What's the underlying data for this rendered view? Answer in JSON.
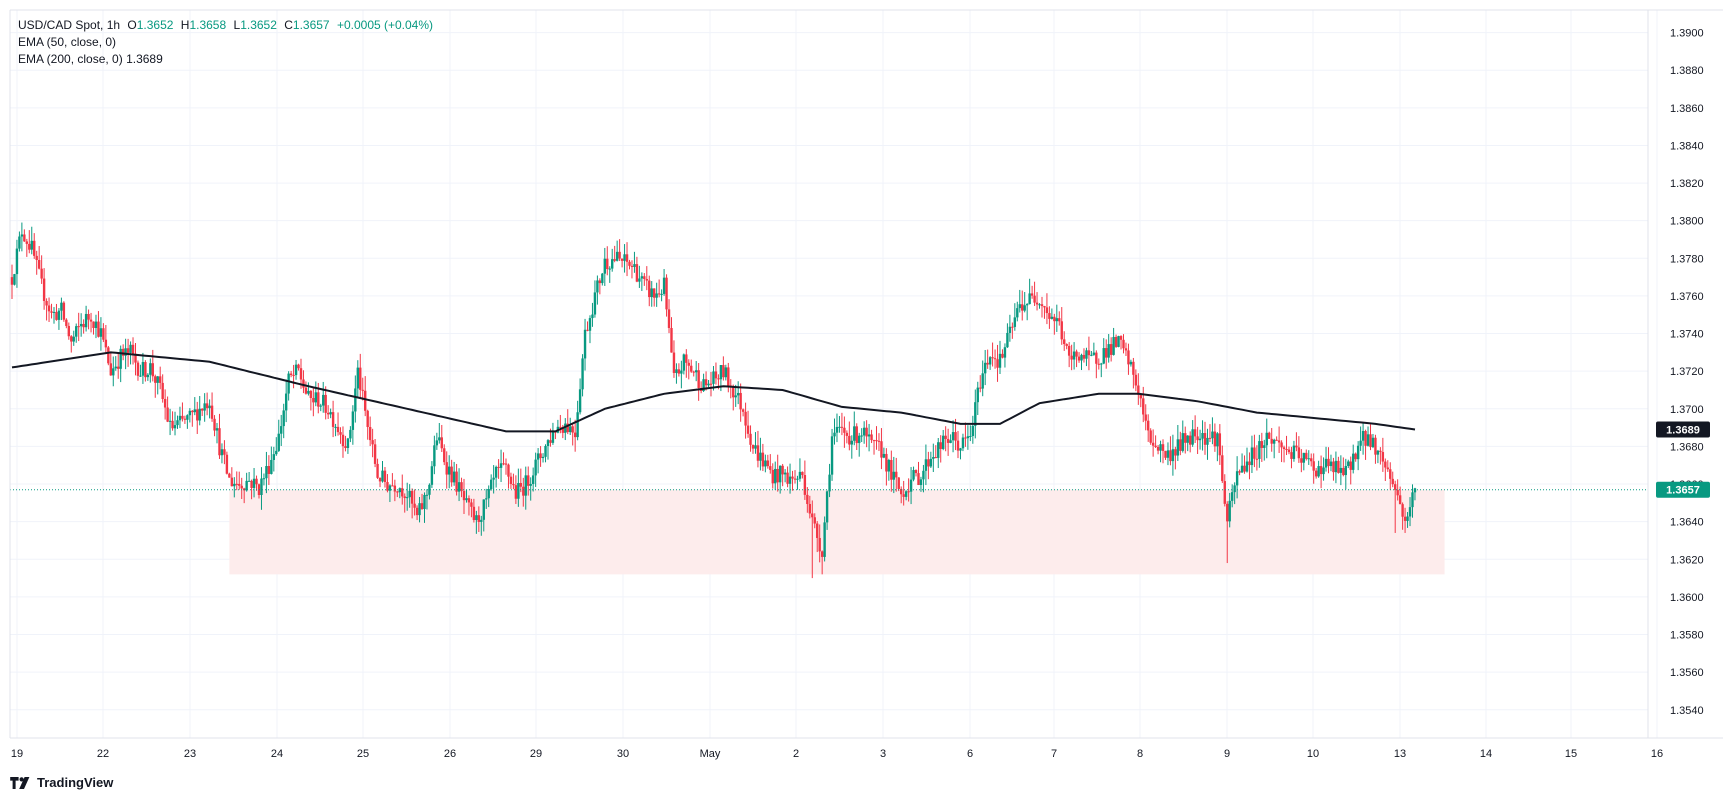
{
  "legend": {
    "symbol": "USD/CAD Spot, 1h",
    "o_label": "O",
    "o_value": "1.3652",
    "h_label": "H",
    "h_value": "1.3658",
    "l_label": "L",
    "l_value": "1.3652",
    "c_label": "C",
    "c_value": "1.3657",
    "change": "+0.0005 (+0.04%)",
    "ema50": "EMA (50, close, 0)",
    "ema200": "EMA (200, close, 0)",
    "ema200_value": "1.3689"
  },
  "brand": "TradingView",
  "colors": {
    "up": "#089981",
    "down": "#f23645",
    "ema": "#131722",
    "zone": "#fdecec",
    "grid": "#f0f3fa",
    "last_price_tag": "#089981"
  },
  "chart_data": {
    "type": "candlestick",
    "title": "USD/CAD Spot, 1h",
    "ylim": [
      1.3525,
      1.3912
    ],
    "yticks": [
      "1.3900",
      "1.3880",
      "1.3860",
      "1.3840",
      "1.3820",
      "1.3800",
      "1.3780",
      "1.3760",
      "1.3740",
      "1.3720",
      "1.3700",
      "1.3680",
      "1.3660",
      "1.3640",
      "1.3620",
      "1.3600",
      "1.3580",
      "1.3560",
      "1.3540"
    ],
    "xticks": [
      "19",
      "22",
      "23",
      "24",
      "25",
      "26",
      "29",
      "30",
      "May",
      "2",
      "3",
      "6",
      "7",
      "8",
      "9",
      "10",
      "13",
      "14",
      "15",
      "16"
    ],
    "grid": true,
    "price_path": [
      [
        0,
        1.377
      ],
      [
        1,
        1.3795
      ],
      [
        2,
        1.3785
      ],
      [
        3,
        1.3765
      ],
      [
        4,
        1.375
      ],
      [
        5,
        1.3752
      ],
      [
        6,
        1.3735
      ],
      [
        7,
        1.3745
      ],
      [
        8,
        1.375
      ],
      [
        9,
        1.374
      ],
      [
        10,
        1.372
      ],
      [
        11,
        1.3728
      ],
      [
        12,
        1.373
      ],
      [
        13,
        1.372
      ],
      [
        14,
        1.3722
      ],
      [
        15,
        1.371
      ],
      [
        16,
        1.369
      ],
      [
        17,
        1.3692
      ],
      [
        18,
        1.3695
      ],
      [
        19,
        1.37
      ],
      [
        20,
        1.3705
      ],
      [
        21,
        1.368
      ],
      [
        22,
        1.3662
      ],
      [
        23,
        1.366
      ],
      [
        24,
        1.3662
      ],
      [
        25,
        1.3658
      ],
      [
        26,
        1.367
      ],
      [
        27,
        1.3685
      ],
      [
        28,
        1.3715
      ],
      [
        29,
        1.372
      ],
      [
        30,
        1.3705
      ],
      [
        31,
        1.3705
      ],
      [
        32,
        1.37
      ],
      [
        33,
        1.369
      ],
      [
        34,
        1.368
      ],
      [
        35,
        1.372
      ],
      [
        36,
        1.369
      ],
      [
        37,
        1.3665
      ],
      [
        38,
        1.366
      ],
      [
        39,
        1.366
      ],
      [
        40,
        1.3655
      ],
      [
        41,
        1.3642
      ],
      [
        42,
        1.3655
      ],
      [
        43,
        1.3685
      ],
      [
        44,
        1.367
      ],
      [
        45,
        1.366
      ],
      [
        46,
        1.3648
      ],
      [
        47,
        1.364
      ],
      [
        48,
        1.365
      ],
      [
        49,
        1.3665
      ],
      [
        50,
        1.3668
      ],
      [
        51,
        1.3655
      ],
      [
        52,
        1.366
      ],
      [
        53,
        1.367
      ],
      [
        54,
        1.368
      ],
      [
        55,
        1.369
      ],
      [
        56,
        1.3692
      ],
      [
        57,
        1.3688
      ],
      [
        58,
        1.374
      ],
      [
        59,
        1.376
      ],
      [
        60,
        1.3778
      ],
      [
        61,
        1.378
      ],
      [
        62,
        1.3778
      ],
      [
        63,
        1.3775
      ],
      [
        64,
        1.3765
      ],
      [
        65,
        1.376
      ],
      [
        66,
        1.3765
      ],
      [
        67,
        1.3715
      ],
      [
        68,
        1.3725
      ],
      [
        69,
        1.372
      ],
      [
        70,
        1.3712
      ],
      [
        71,
        1.3715
      ],
      [
        72,
        1.372
      ],
      [
        73,
        1.371
      ],
      [
        74,
        1.37
      ],
      [
        75,
        1.368
      ],
      [
        76,
        1.3672
      ],
      [
        77,
        1.3665
      ],
      [
        78,
        1.3665
      ],
      [
        79,
        1.3662
      ],
      [
        80,
        1.3665
      ],
      [
        81,
        1.364
      ],
      [
        82,
        1.3625
      ],
      [
        83,
        1.3685
      ],
      [
        84,
        1.3688
      ],
      [
        85,
        1.3685
      ],
      [
        86,
        1.3688
      ],
      [
        87,
        1.368
      ],
      [
        88,
        1.3678
      ],
      [
        89,
        1.3665
      ],
      [
        90,
        1.3655
      ],
      [
        91,
        1.3662
      ],
      [
        92,
        1.3665
      ],
      [
        93,
        1.3675
      ],
      [
        94,
        1.368
      ],
      [
        95,
        1.3685
      ],
      [
        96,
        1.368
      ],
      [
        97,
        1.3685
      ],
      [
        98,
        1.3715
      ],
      [
        99,
        1.373
      ],
      [
        100,
        1.3725
      ],
      [
        101,
        1.374
      ],
      [
        102,
        1.3755
      ],
      [
        103,
        1.3758
      ],
      [
        104,
        1.376
      ],
      [
        105,
        1.375
      ],
      [
        106,
        1.3745
      ],
      [
        107,
        1.3725
      ],
      [
        108,
        1.373
      ],
      [
        109,
        1.3725
      ],
      [
        110,
        1.3728
      ],
      [
        111,
        1.3732
      ],
      [
        112,
        1.3735
      ],
      [
        113,
        1.3725
      ],
      [
        114,
        1.371
      ],
      [
        115,
        1.3685
      ],
      [
        116,
        1.368
      ],
      [
        117,
        1.3675
      ],
      [
        118,
        1.368
      ],
      [
        119,
        1.3685
      ],
      [
        120,
        1.3688
      ],
      [
        121,
        1.3685
      ],
      [
        122,
        1.3685
      ],
      [
        123,
        1.364
      ],
      [
        124,
        1.3665
      ],
      [
        125,
        1.3672
      ],
      [
        126,
        1.3678
      ],
      [
        127,
        1.3685
      ],
      [
        128,
        1.3682
      ],
      [
        129,
        1.3678
      ],
      [
        130,
        1.3675
      ],
      [
        131,
        1.3672
      ],
      [
        132,
        1.3668
      ],
      [
        133,
        1.367
      ],
      [
        134,
        1.3668
      ],
      [
        135,
        1.3665
      ],
      [
        136,
        1.3678
      ],
      [
        137,
        1.3685
      ],
      [
        138,
        1.368
      ],
      [
        139,
        1.367
      ],
      [
        140,
        1.3658
      ],
      [
        141,
        1.364
      ],
      [
        142,
        1.3657
      ]
    ],
    "ema200_path": [
      [
        0,
        1.3722
      ],
      [
        10,
        1.373
      ],
      [
        20,
        1.3725
      ],
      [
        30,
        1.3712
      ],
      [
        40,
        1.37
      ],
      [
        50,
        1.3688
      ],
      [
        55,
        1.3688
      ],
      [
        60,
        1.37
      ],
      [
        66,
        1.3708
      ],
      [
        72,
        1.3712
      ],
      [
        78,
        1.371
      ],
      [
        84,
        1.3701
      ],
      [
        90,
        1.3698
      ],
      [
        96,
        1.3692
      ],
      [
        100,
        1.3692
      ],
      [
        104,
        1.3703
      ],
      [
        110,
        1.3708
      ],
      [
        114,
        1.3708
      ],
      [
        120,
        1.3704
      ],
      [
        126,
        1.3698
      ],
      [
        132,
        1.3695
      ],
      [
        138,
        1.3692
      ],
      [
        142,
        1.3689
      ]
    ],
    "ema200_last": "1.3689",
    "last_price": "1.3657",
    "support_zone": {
      "from_bar": 22,
      "to_bar": 145,
      "low": 1.3612,
      "high": 1.3657
    }
  }
}
